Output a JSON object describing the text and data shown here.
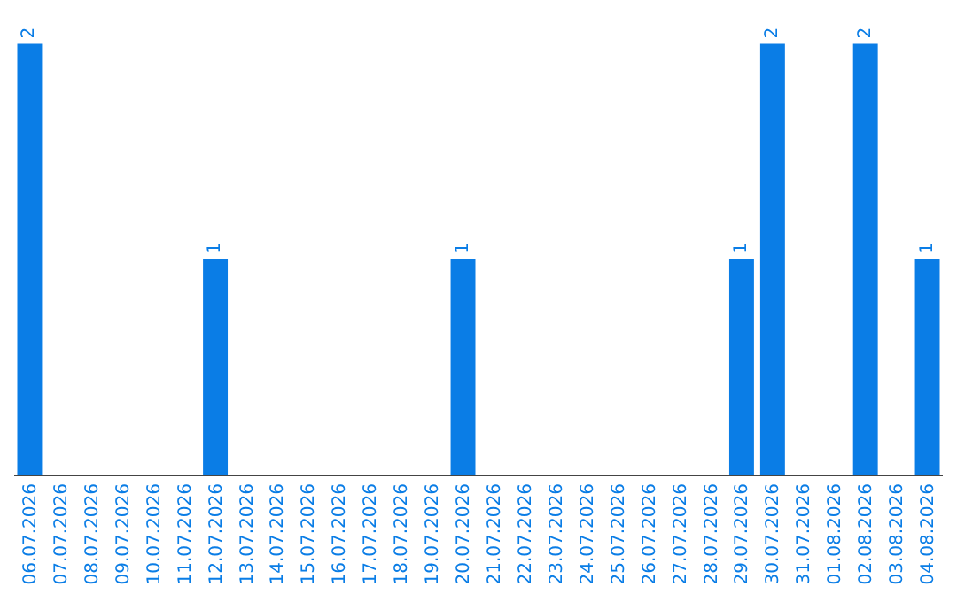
{
  "chart_data": {
    "type": "bar",
    "categories": [
      "06.07.2026",
      "07.07.2026",
      "08.07.2026",
      "09.07.2026",
      "10.07.2026",
      "11.07.2026",
      "12.07.2026",
      "13.07.2026",
      "14.07.2026",
      "15.07.2026",
      "16.07.2026",
      "17.07.2026",
      "18.07.2026",
      "19.07.2026",
      "20.07.2026",
      "21.07.2026",
      "22.07.2026",
      "23.07.2026",
      "24.07.2026",
      "25.07.2026",
      "26.07.2026",
      "27.07.2026",
      "28.07.2026",
      "29.07.2026",
      "30.07.2026",
      "31.07.2026",
      "01.08.2026",
      "02.08.2026",
      "03.08.2026",
      "04.08.2026"
    ],
    "values": [
      2,
      0,
      0,
      0,
      0,
      0,
      1,
      0,
      0,
      0,
      0,
      0,
      0,
      0,
      1,
      0,
      0,
      0,
      0,
      0,
      0,
      0,
      0,
      1,
      2,
      0,
      0,
      2,
      0,
      1
    ],
    "value_labels": [
      "2",
      null,
      null,
      null,
      null,
      null,
      "1",
      null,
      null,
      null,
      null,
      null,
      null,
      null,
      "1",
      null,
      null,
      null,
      null,
      null,
      null,
      null,
      null,
      "1",
      "2",
      null,
      null,
      "2",
      null,
      "1"
    ],
    "color": "#0a7de6"
  }
}
